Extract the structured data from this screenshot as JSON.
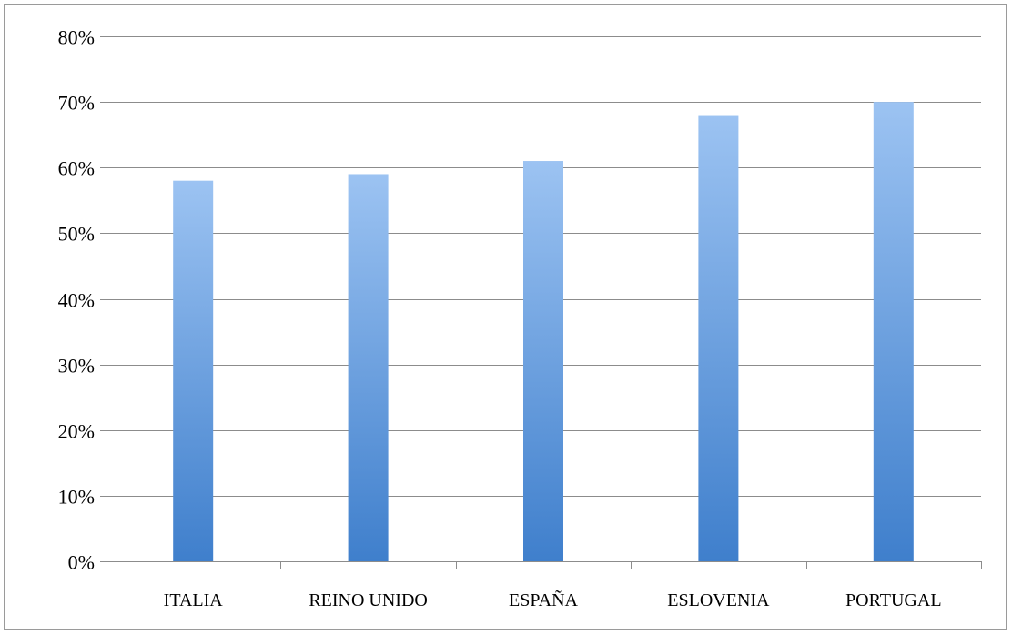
{
  "chart_data": {
    "type": "bar",
    "title": "",
    "xlabel": "",
    "ylabel": "",
    "categories": [
      "ITALIA",
      "REINO UNIDO",
      "ESPAÑA",
      "ESLOVENIA",
      "PORTUGAL"
    ],
    "values": [
      58,
      59,
      61,
      68,
      70
    ],
    "value_unit": "%",
    "ylim": [
      0,
      80
    ],
    "yticks": [
      0,
      10,
      20,
      30,
      40,
      50,
      60,
      70,
      80
    ],
    "ytick_labels": [
      "0%",
      "10%",
      "20%",
      "30%",
      "40%",
      "50%",
      "60%",
      "70%",
      "80%"
    ],
    "grid": true,
    "legend": "none",
    "bar_color_top": "#9cc3f2",
    "bar_color_bottom": "#3f7fcc",
    "grid_color": "#8c8c8c"
  }
}
